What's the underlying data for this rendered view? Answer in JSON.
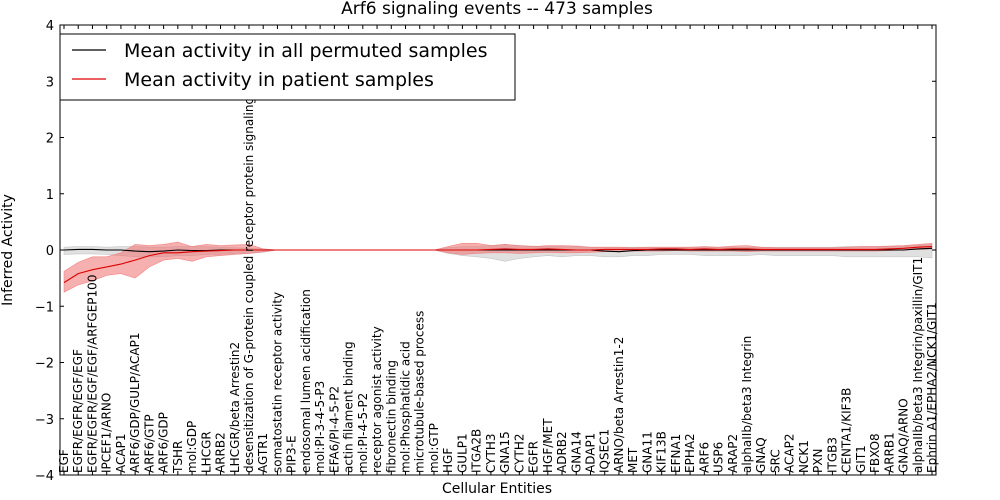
{
  "chart_data": {
    "type": "line",
    "title": "Arf6 signaling events -- 473 samples",
    "xlabel": "Cellular Entities",
    "ylabel": "Inferred Activity",
    "ylim": [
      -4,
      4
    ],
    "yticks": [
      -4,
      -3,
      -2,
      -1,
      0,
      1,
      2,
      3,
      4
    ],
    "legend_position": "top-left",
    "categories": [
      "EGF",
      "EGFR/EGFR/EGF/EGF",
      "EGFR/EGFR/EGF/EGF/ARFGEP100",
      "IPCEF1/ARNO",
      "ACAP1",
      "ARF6/GDP/GULP/ACAP1",
      "ARF6/GTP",
      "ARF6/GDP",
      "TSHR",
      "mol:GDP",
      "LHCGR",
      "ARRB2",
      "LHCGR/beta Arrestin2",
      "desensitization of G-protein coupled receptor protein signaling pathway",
      "AGTR1",
      "somatostatin receptor activity",
      "PIP3-E",
      "endosomal lumen acidification",
      "mol:PI-3-4-5-P3",
      "EFA6/PI-4-5-P2",
      "actin filament binding",
      "mol:PI-4-5-P2",
      "receptor agonist activity",
      "fibronectin binding",
      "mol:Phosphatidic acid",
      "microtubule-based process",
      "mol:GTP",
      "HGF",
      "GULP1",
      "ITGA2B",
      "CYTH3",
      "GNA15",
      "CYTH2",
      "EGFR",
      "HGF/MET",
      "ADRB2",
      "GNA14",
      "ADAP1",
      "IQSEC1",
      "ARNO/beta Arrestin1-2",
      "MET",
      "GNA11",
      "KIF13B",
      "EFNA1",
      "EPHA2",
      "ARF6",
      "USP6",
      "ARAP2",
      "alphaIIb/beta3 Integrin",
      "GNAQ",
      "SRC",
      "ACAP2",
      "NCK1",
      "PXN",
      "ITGB3",
      "CENTA1/KIF3B",
      "GIT1",
      "FBXO8",
      "ARRB1",
      "GNAQ/ARNO",
      "alphaIIb/beta3 Integrin/paxillin/GIT1",
      "Ephrin A1/EPHA2/NCK1/GIT1"
    ],
    "series": [
      {
        "name": "Mean activity in all permuted samples",
        "color": "#000000",
        "band_color": "#bbbbbb",
        "values": [
          0.0,
          0.01,
          0.01,
          0.0,
          0.0,
          -0.02,
          -0.03,
          -0.02,
          0.0,
          -0.01,
          -0.01,
          0.0,
          0.0,
          0.0,
          0.0,
          0.0,
          0.0,
          0.0,
          0.0,
          0.0,
          0.0,
          0.0,
          0.0,
          0.0,
          0.0,
          0.0,
          0.0,
          0.0,
          0.0,
          0.0,
          0.0,
          0.0,
          0.0,
          0.0,
          0.0,
          0.0,
          0.0,
          0.0,
          -0.02,
          -0.03,
          -0.01,
          0.0,
          0.0,
          0.0,
          0.0,
          0.0,
          0.0,
          0.0,
          0.0,
          0.0,
          0.0,
          0.0,
          0.0,
          0.0,
          0.0,
          0.0,
          0.0,
          0.0,
          0.0,
          0.0,
          0.02,
          0.03
        ],
        "band_lower": [
          -0.08,
          -0.07,
          -0.07,
          -0.08,
          -0.1,
          -0.12,
          -0.12,
          -0.12,
          -0.1,
          -0.1,
          -0.08,
          -0.08,
          -0.06,
          -0.06,
          -0.04,
          0.0,
          0.0,
          0.0,
          0.0,
          0.0,
          0.0,
          0.0,
          0.0,
          0.0,
          0.0,
          0.0,
          0.0,
          -0.06,
          -0.1,
          -0.12,
          -0.15,
          -0.2,
          -0.15,
          -0.12,
          -0.1,
          -0.12,
          -0.1,
          -0.1,
          -0.12,
          -0.12,
          -0.1,
          -0.1,
          -0.08,
          -0.08,
          -0.08,
          -0.1,
          -0.1,
          -0.1,
          -0.1,
          -0.08,
          -0.1,
          -0.1,
          -0.1,
          -0.1,
          -0.1,
          -0.12,
          -0.12,
          -0.12,
          -0.12,
          -0.12,
          -0.12,
          -0.14
        ],
        "band_upper": [
          0.05,
          0.06,
          0.06,
          0.05,
          0.06,
          0.06,
          0.05,
          0.05,
          0.06,
          0.06,
          0.06,
          0.05,
          0.04,
          0.03,
          0.02,
          0.0,
          0.0,
          0.0,
          0.0,
          0.0,
          0.0,
          0.0,
          0.0,
          0.0,
          0.0,
          0.0,
          0.0,
          0.04,
          0.06,
          0.06,
          0.08,
          0.1,
          0.08,
          0.07,
          0.06,
          0.06,
          0.06,
          0.05,
          0.05,
          0.05,
          0.05,
          0.05,
          0.05,
          0.05,
          0.05,
          0.05,
          0.05,
          0.05,
          0.05,
          0.05,
          0.05,
          0.05,
          0.05,
          0.05,
          0.05,
          0.06,
          0.06,
          0.06,
          0.06,
          0.07,
          0.08,
          0.1
        ]
      },
      {
        "name": "Mean activity in patient samples",
        "color": "#dd0000",
        "band_color": "#f07070",
        "values": [
          -0.58,
          -0.42,
          -0.35,
          -0.3,
          -0.25,
          -0.18,
          -0.1,
          -0.05,
          -0.05,
          -0.03,
          -0.02,
          -0.01,
          0.0,
          0.0,
          0.0,
          0.0,
          0.0,
          0.0,
          0.0,
          0.0,
          0.0,
          0.0,
          0.0,
          0.0,
          0.0,
          0.0,
          0.0,
          0.0,
          0.0,
          0.0,
          0.01,
          0.02,
          0.01,
          0.01,
          0.02,
          0.01,
          0.0,
          0.0,
          0.01,
          0.01,
          0.01,
          0.01,
          0.02,
          0.02,
          0.01,
          0.02,
          0.01,
          0.02,
          0.02,
          0.01,
          0.01,
          0.01,
          0.01,
          0.01,
          0.01,
          0.01,
          0.01,
          0.01,
          0.02,
          0.03,
          0.05,
          0.06
        ],
        "band_lower": [
          -0.75,
          -0.62,
          -0.55,
          -0.45,
          -0.42,
          -0.5,
          -0.3,
          -0.18,
          -0.15,
          -0.2,
          -0.12,
          -0.1,
          -0.08,
          -0.06,
          -0.03,
          0.0,
          0.0,
          0.0,
          0.0,
          0.0,
          0.0,
          0.0,
          0.0,
          0.0,
          0.0,
          0.0,
          0.0,
          -0.05,
          -0.08,
          -0.06,
          -0.05,
          -0.05,
          -0.06,
          -0.05,
          -0.04,
          -0.05,
          -0.05,
          -0.04,
          -0.03,
          -0.03,
          -0.02,
          -0.02,
          -0.02,
          -0.01,
          -0.02,
          -0.02,
          -0.02,
          -0.02,
          -0.03,
          -0.02,
          -0.02,
          -0.02,
          -0.02,
          -0.02,
          -0.02,
          -0.02,
          -0.02,
          -0.02,
          -0.01,
          0.0,
          0.01,
          0.02
        ],
        "band_upper": [
          -0.38,
          -0.22,
          -0.12,
          -0.12,
          -0.05,
          0.1,
          0.08,
          0.1,
          0.14,
          0.06,
          0.1,
          0.08,
          0.09,
          0.1,
          0.02,
          0.0,
          0.0,
          0.0,
          0.0,
          0.0,
          0.0,
          0.0,
          0.0,
          0.0,
          0.0,
          0.0,
          0.0,
          0.06,
          0.12,
          0.12,
          0.08,
          0.1,
          0.08,
          0.06,
          0.08,
          0.08,
          0.07,
          0.05,
          0.05,
          0.05,
          0.04,
          0.05,
          0.05,
          0.05,
          0.05,
          0.06,
          0.05,
          0.07,
          0.08,
          0.05,
          0.04,
          0.04,
          0.04,
          0.04,
          0.04,
          0.05,
          0.06,
          0.06,
          0.07,
          0.08,
          0.1,
          0.12
        ]
      }
    ]
  }
}
